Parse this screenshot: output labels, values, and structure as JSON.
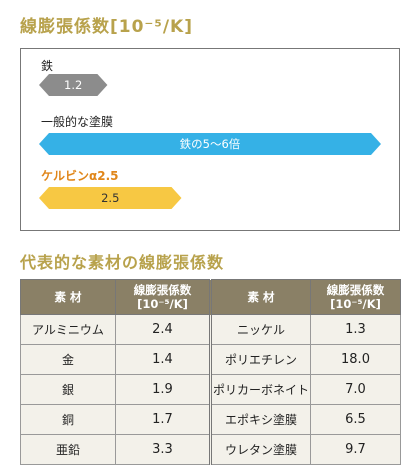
{
  "titles": {
    "chart": "線膨張係数[10⁻⁵/K]",
    "table": "代表的な素材の線膨張係数"
  },
  "chart_data": {
    "type": "bar",
    "title": "線膨張係数[10⁻⁵/K]",
    "xlabel": "",
    "ylabel": "",
    "bars": [
      {
        "name": "鉄",
        "value": 1.2,
        "bar_text": "1.2",
        "color": "#8c8c8c"
      },
      {
        "name": "一般的な塗膜",
        "value": 6.0,
        "range": [
          5,
          6
        ],
        "bar_text": "鉄の5〜6倍",
        "color": "#35b1e6"
      },
      {
        "name": "ケルビンα2.5",
        "value": 2.5,
        "bar_text": "2.5",
        "color": "#f7c843"
      }
    ]
  },
  "colors": {
    "title": "#b8a24c",
    "table_header": "#8a8066",
    "table_cell": "#f3f1ea",
    "accent_label": "#e0861a"
  },
  "table": {
    "headers": [
      "素 材",
      "線膨張係数\n[10⁻⁵/K]",
      "素 材",
      "線膨張係数\n[10⁻⁵/K]"
    ],
    "header_col1": "素 材",
    "header_col2_line1": "線膨張係数",
    "header_col2_line2": "[10⁻⁵/K]",
    "header_col3": "素 材",
    "header_col4_line1": "線膨張係数",
    "header_col4_line2": "[10⁻⁵/K]",
    "rows": [
      {
        "m1": "アルミニウム",
        "v1": "2.4",
        "m2": "ニッケル",
        "v2": "1.3"
      },
      {
        "m1": "金",
        "v1": "1.4",
        "m2": "ポリエチレン",
        "v2": "18.0"
      },
      {
        "m1": "銀",
        "v1": "1.9",
        "m2": "ポリカーボネイト",
        "v2": "7.0"
      },
      {
        "m1": "銅",
        "v1": "1.7",
        "m2": "エポキシ塗膜",
        "v2": "6.5"
      },
      {
        "m1": "亜鉛",
        "v1": "3.3",
        "m2": "ウレタン塗膜",
        "v2": "9.7"
      }
    ]
  }
}
